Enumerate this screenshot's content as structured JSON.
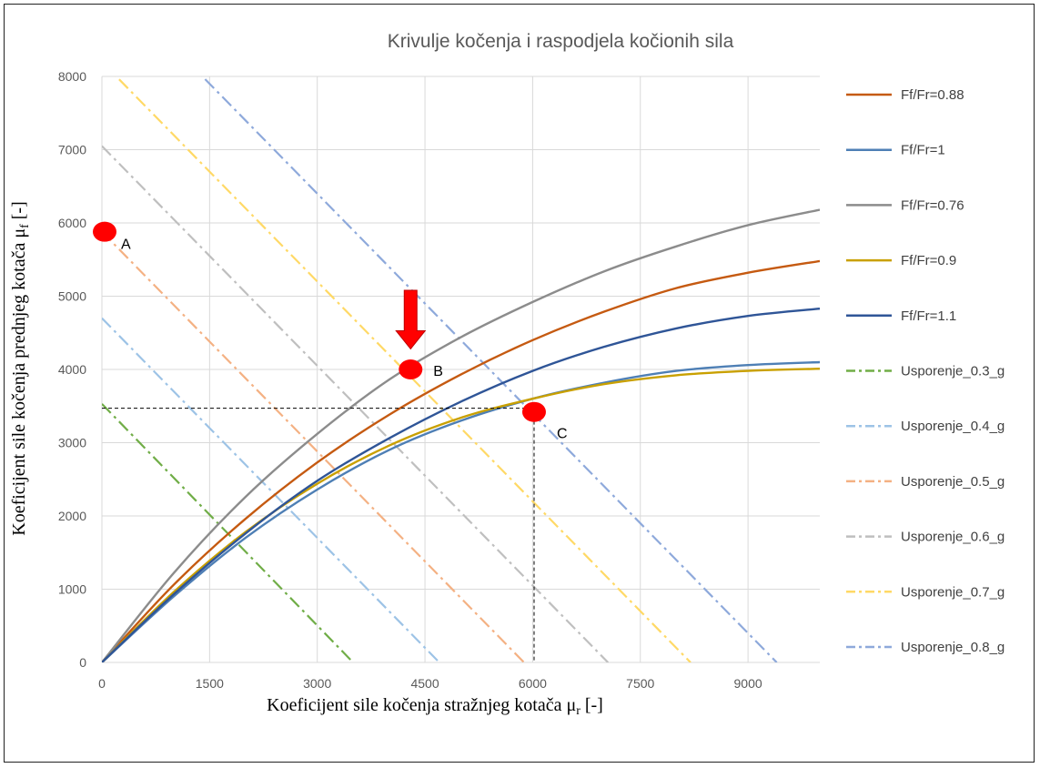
{
  "chart_data": {
    "type": "line",
    "title": "Krivulje kočenja i raspodjela kočionih sila",
    "xlabel": {
      "main": "Koeficijent sile kočenja stražnjeg kotača μ",
      "sub": "r",
      "tail": " [-]"
    },
    "ylabel": {
      "main": "Koeficijent sile kočenja  prednjeg kotača μ",
      "sub": "f",
      "tail": " [-]"
    },
    "xlim": [
      0,
      10000
    ],
    "ylim": [
      0,
      8000
    ],
    "x_ticks": [
      0,
      1500,
      3000,
      4500,
      6000,
      7500,
      9000
    ],
    "y_ticks": [
      0,
      1000,
      2000,
      3000,
      4000,
      5000,
      6000,
      7000,
      8000
    ],
    "grid": true,
    "legend_position": "right",
    "curves": [
      {
        "name": "Ff/Fr=0.88",
        "color": "#C55A11",
        "points": [
          [
            0,
            0
          ],
          [
            1000,
            1060
          ],
          [
            2000,
            1960
          ],
          [
            3000,
            2730
          ],
          [
            4000,
            3380
          ],
          [
            5000,
            3930
          ],
          [
            6000,
            4400
          ],
          [
            7000,
            4790
          ],
          [
            8000,
            5110
          ],
          [
            9000,
            5320
          ],
          [
            10000,
            5480
          ]
        ]
      },
      {
        "name": "Ff/Fr=1",
        "color": "#4E7FB5",
        "points": [
          [
            0,
            0
          ],
          [
            1000,
            900
          ],
          [
            2000,
            1700
          ],
          [
            3000,
            2360
          ],
          [
            4000,
            2900
          ],
          [
            5000,
            3300
          ],
          [
            6000,
            3600
          ],
          [
            7000,
            3820
          ],
          [
            8000,
            3980
          ],
          [
            9000,
            4060
          ],
          [
            10000,
            4100
          ]
        ]
      },
      {
        "name": "Ff/Fr=0.76",
        "color": "#8C8C8C",
        "points": [
          [
            0,
            0
          ],
          [
            1000,
            1220
          ],
          [
            2000,
            2260
          ],
          [
            3000,
            3120
          ],
          [
            4000,
            3860
          ],
          [
            5000,
            4440
          ],
          [
            6000,
            4920
          ],
          [
            7000,
            5340
          ],
          [
            8000,
            5680
          ],
          [
            9000,
            5970
          ],
          [
            10000,
            6180
          ]
        ]
      },
      {
        "name": "Ff/Fr=0.9",
        "color": "#C9A000",
        "points": [
          [
            0,
            0
          ],
          [
            1000,
            960
          ],
          [
            2000,
            1780
          ],
          [
            3000,
            2440
          ],
          [
            4000,
            2960
          ],
          [
            5000,
            3340
          ],
          [
            6000,
            3600
          ],
          [
            7000,
            3800
          ],
          [
            8000,
            3920
          ],
          [
            9000,
            3980
          ],
          [
            10000,
            4010
          ]
        ]
      },
      {
        "name": "Ff/Fr=1.1",
        "color": "#2F5597",
        "points": [
          [
            0,
            0
          ],
          [
            1000,
            930
          ],
          [
            2000,
            1760
          ],
          [
            3000,
            2480
          ],
          [
            4000,
            3060
          ],
          [
            5000,
            3560
          ],
          [
            6000,
            3980
          ],
          [
            7000,
            4310
          ],
          [
            8000,
            4560
          ],
          [
            9000,
            4730
          ],
          [
            10000,
            4830
          ]
        ]
      }
    ],
    "decel_lines": [
      {
        "name": "Usporenje_0.3_g",
        "color": "#70AD47",
        "y0": 3530,
        "x0": 3500
      },
      {
        "name": "Usporenje_0.4_g",
        "color": "#9DC3E6",
        "y0": 4700,
        "x0": 4700
      },
      {
        "name": "Usporenje_0.5_g",
        "color": "#F4B183",
        "y0": 5880,
        "x0": 5880
      },
      {
        "name": "Usporenje_0.6_g",
        "color": "#BFBFBF",
        "y0": 7050,
        "x0": 7050
      },
      {
        "name": "Usporenje_0.7_g",
        "color": "#FFD966",
        "y0": 8200,
        "x0": 8200
      },
      {
        "name": "Usporenje_0.8_g",
        "color": "#8EA9DB",
        "y0": 9400,
        "x0": 9400
      }
    ],
    "points": [
      {
        "label": "A",
        "x": 0,
        "y": 5880
      },
      {
        "label": "B",
        "x": 4300,
        "y": 4000
      },
      {
        "label": "C",
        "x": 6020,
        "y": 3420
      }
    ],
    "guide_point": {
      "x": 6020,
      "y": 3470
    },
    "arrow": {
      "x": 4300,
      "y_top": 5080,
      "y_bottom": 4280,
      "color": "#FF0000"
    },
    "marker_color": "#FF0000"
  }
}
